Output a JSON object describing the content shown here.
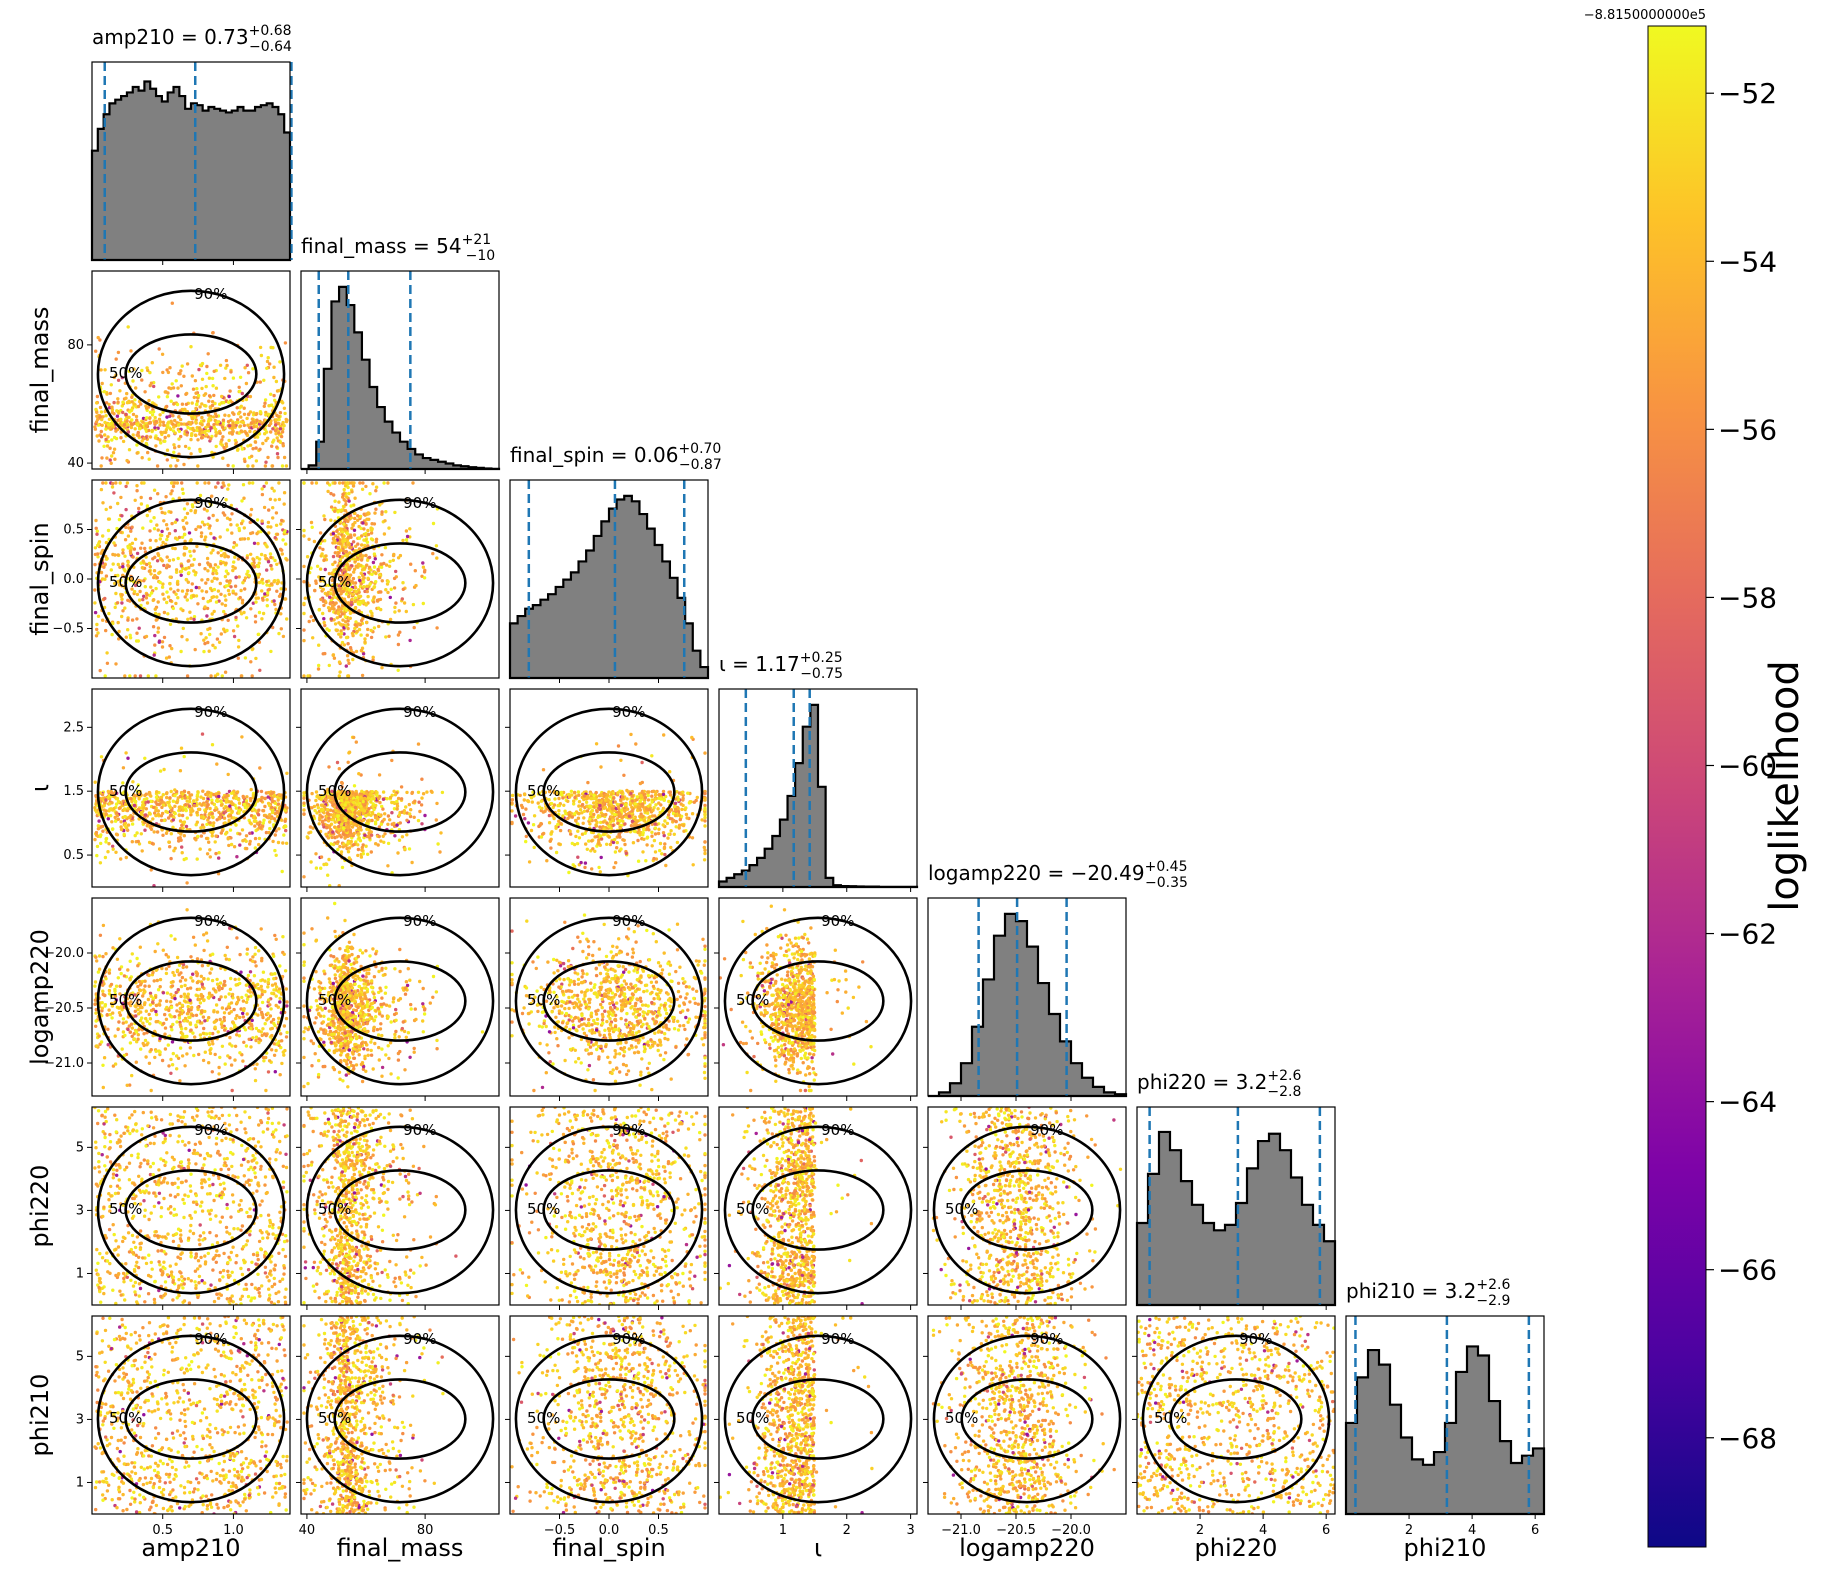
{
  "figure": {
    "colorbar_label": "loglikelihood",
    "colorbar_offset": "−8.8150000000e5",
    "colorbar_ticks": [
      "−52",
      "−54",
      "−56",
      "−58",
      "−60",
      "−62",
      "−64",
      "−66",
      "−68"
    ]
  },
  "chart_data": {
    "type": "corner",
    "parameters": [
      {
        "name": "amp210",
        "title": {
          "pre": "amp210 = 0.73",
          "sup": "+0.68",
          "sub": "−0.64"
        },
        "range": [
          0.0,
          1.4
        ],
        "ticks": [
          0.5,
          1.0
        ],
        "tick_labels": [
          "0.5",
          "1.0"
        ],
        "quantiles": [
          0.09,
          0.73,
          1.41
        ]
      },
      {
        "name": "final_mass",
        "title": {
          "pre": "final_mass = 54",
          "sup": "+21",
          "sub": "−10"
        },
        "range": [
          38,
          105
        ],
        "ticks": [
          40,
          80
        ],
        "tick_labels": [
          "40",
          "80"
        ],
        "quantiles": [
          44,
          54,
          75
        ]
      },
      {
        "name": "final_spin",
        "title": {
          "pre": "final_spin = 0.06",
          "sup": "+0.70",
          "sub": "−0.87"
        },
        "range": [
          -1.0,
          1.0
        ],
        "ticks": [
          -0.5,
          0.0,
          0.5
        ],
        "tick_labels": [
          "−0.5",
          "0.0",
          "0.5"
        ],
        "quantiles": [
          -0.81,
          0.06,
          0.76
        ]
      },
      {
        "name": "ι",
        "title": {
          "pre": "ι = 1.17",
          "sup": "+0.25",
          "sub": "−0.75"
        },
        "range": [
          0.0,
          3.1
        ],
        "ticks": [
          1,
          2,
          3
        ],
        "tick_labels": [
          "1",
          "2",
          "3"
        ],
        "quantiles": [
          0.42,
          1.17,
          1.42
        ]
      },
      {
        "name": "logamp220",
        "title": {
          "pre": "logamp220 = −20.49",
          "sup": "+0.45",
          "sub": "−0.35"
        },
        "range": [
          -21.3,
          -19.5
        ],
        "ticks": [
          -21.0,
          -20.5,
          -20.0
        ],
        "tick_labels": [
          "−21.0",
          "−20.5",
          "−20.0"
        ],
        "quantiles": [
          -20.84,
          -20.49,
          -20.04
        ]
      },
      {
        "name": "phi220",
        "title": {
          "pre": "phi220 = 3.2",
          "sup": "+2.6",
          "sub": "−2.8"
        },
        "range": [
          0.0,
          6.28
        ],
        "ticks": [
          2,
          4,
          6
        ],
        "tick_labels": [
          "2",
          "4",
          "6"
        ],
        "quantiles": [
          0.4,
          3.2,
          5.8
        ]
      },
      {
        "name": "phi210",
        "title": {
          "pre": "phi210 = 3.2",
          "sup": "+2.6",
          "sub": "−2.9"
        },
        "range": [
          0.0,
          6.28
        ],
        "ticks": [
          2,
          4,
          6
        ],
        "tick_labels": [
          "2",
          "4",
          "6"
        ],
        "quantiles": [
          0.3,
          3.2,
          5.8
        ]
      }
    ],
    "row_tick_labels": {
      "final_mass": [
        "40",
        "80"
      ],
      "final_spin": [
        "−0.5",
        "0.0",
        "0.5"
      ],
      "ι": [
        "0.5",
        "1.5",
        "2.5"
      ],
      "logamp220": [
        "−21.0",
        "−20.5",
        "−20.0"
      ],
      "phi220": [
        "1",
        "3",
        "5"
      ],
      "phi210": [
        "1",
        "3",
        "5"
      ]
    },
    "row_tick_values": {
      "final_mass": [
        40,
        80
      ],
      "final_spin": [
        -0.5,
        0.0,
        0.5
      ],
      "ι": [
        0.5,
        1.5,
        2.5
      ],
      "logamp220": [
        -21.0,
        -20.5,
        -20.0
      ],
      "phi220": [
        1,
        3,
        5
      ],
      "phi210": [
        1,
        3,
        5
      ]
    },
    "histograms": [
      [
        0.6,
        0.72,
        0.8,
        0.86,
        0.88,
        0.9,
        0.92,
        0.95,
        0.93,
        0.98,
        0.94,
        0.9,
        0.87,
        0.92,
        0.95,
        0.9,
        0.83,
        0.86,
        0.85,
        0.82,
        0.84,
        0.83,
        0.82,
        0.81,
        0.82,
        0.84,
        0.82,
        0.82,
        0.84,
        0.85,
        0.86,
        0.84,
        0.8,
        0.7
      ],
      [
        0.0,
        0.02,
        0.15,
        0.55,
        0.92,
        1.0,
        0.9,
        0.75,
        0.6,
        0.45,
        0.34,
        0.26,
        0.2,
        0.15,
        0.11,
        0.08,
        0.06,
        0.05,
        0.04,
        0.03,
        0.02,
        0.015,
        0.01,
        0.006,
        0.003,
        0.001
      ],
      [
        0.3,
        0.34,
        0.38,
        0.4,
        0.43,
        0.46,
        0.5,
        0.54,
        0.58,
        0.64,
        0.7,
        0.78,
        0.86,
        0.93,
        0.98,
        1.0,
        0.97,
        0.9,
        0.82,
        0.73,
        0.64,
        0.55,
        0.44,
        0.3,
        0.15,
        0.06
      ],
      [
        0.03,
        0.05,
        0.07,
        0.09,
        0.12,
        0.16,
        0.21,
        0.28,
        0.37,
        0.5,
        0.68,
        0.88,
        1.0,
        0.55,
        0.05,
        0.01,
        0.005,
        0.004,
        0.003,
        0.002,
        0.002,
        0.001,
        0.001,
        0.001,
        0.001,
        0.001
      ],
      [
        0.0,
        0.02,
        0.07,
        0.18,
        0.38,
        0.64,
        0.88,
        1.0,
        0.96,
        0.82,
        0.62,
        0.45,
        0.3,
        0.18,
        0.1,
        0.05,
        0.02,
        0.01
      ],
      [
        0.45,
        0.72,
        0.95,
        0.85,
        0.68,
        0.55,
        0.45,
        0.41,
        0.44,
        0.56,
        0.75,
        0.9,
        0.94,
        0.85,
        0.7,
        0.55,
        0.44,
        0.35
      ],
      [
        0.5,
        0.75,
        0.9,
        0.82,
        0.6,
        0.42,
        0.3,
        0.27,
        0.34,
        0.5,
        0.78,
        0.92,
        0.87,
        0.62,
        0.4,
        0.28,
        0.32,
        0.36
      ]
    ],
    "contour_labels": [
      "50%",
      "90%"
    ],
    "colorbar_range": [
      -69.3,
      -51.2
    ],
    "colorbar_label": "loglikelihood"
  }
}
